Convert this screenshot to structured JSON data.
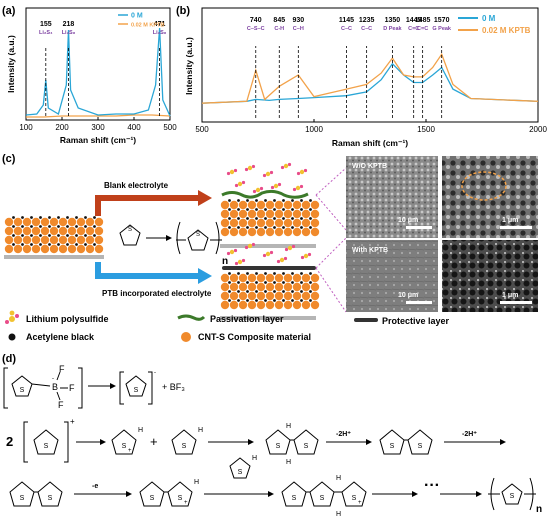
{
  "panels": {
    "a": "(a)",
    "b": "(b)",
    "c": "(c)",
    "d": "(d)"
  },
  "chart_data": [
    {
      "type": "line",
      "panel": "a",
      "xlabel": "Raman shift (cm⁻¹)",
      "ylabel": "Intensity (a.u.)",
      "xlim": [
        100,
        500
      ],
      "xticks": [
        100,
        200,
        300,
        400,
        500
      ],
      "legend_position": "top-right",
      "colors": {
        "0 M": "#2aa6d6",
        "0.02 M KPTB": "#f2a24a"
      },
      "series": [
        {
          "name": "0 M",
          "x": [
            100,
            130,
            148,
            155,
            162,
            190,
            212,
            218,
            224,
            245,
            300,
            350,
            400,
            440,
            460,
            471,
            480,
            500
          ],
          "y": [
            0.05,
            0.06,
            0.15,
            0.4,
            0.12,
            0.06,
            0.35,
            0.9,
            0.3,
            0.12,
            0.05,
            0.06,
            0.06,
            0.1,
            0.35,
            0.92,
            0.2,
            0.04
          ]
        },
        {
          "name": "0.02 M KPTB",
          "x": [
            100,
            150,
            200,
            250,
            300,
            350,
            400,
            450,
            500
          ],
          "y": [
            0.03,
            0.03,
            0.04,
            0.04,
            0.04,
            0.04,
            0.05,
            0.05,
            0.04
          ]
        }
      ],
      "annotations": [
        {
          "x": 155,
          "label": "155",
          "species": "Li₂S₄"
        },
        {
          "x": 218,
          "label": "218",
          "species": "Li₂S₈"
        },
        {
          "x": 471,
          "label": "471",
          "species": "Li₂S₈"
        }
      ]
    },
    {
      "type": "line",
      "panel": "b",
      "xlabel": "Raman shift (cm⁻¹)",
      "ylabel": "Intensity (a.u.)",
      "xlim": [
        500,
        2000
      ],
      "xticks": [
        500,
        1000,
        1500,
        2000
      ],
      "legend_position": "top-right",
      "colors": {
        "0 M": "#2aa6d6",
        "0.02 M KPTB": "#f2a24a"
      },
      "series": [
        {
          "name": "0 M",
          "x": [
            500,
            700,
            740,
            800,
            845,
            930,
            1000,
            1145,
            1235,
            1300,
            1350,
            1400,
            1445,
            1485,
            1530,
            1570,
            1620,
            1700,
            2000
          ],
          "y": [
            0.2,
            0.22,
            0.24,
            0.23,
            0.24,
            0.25,
            0.26,
            0.28,
            0.32,
            0.45,
            0.62,
            0.5,
            0.42,
            0.42,
            0.5,
            0.58,
            0.35,
            0.25,
            0.22
          ]
        },
        {
          "name": "0.02 M KPTB",
          "x": [
            500,
            700,
            740,
            780,
            845,
            930,
            1000,
            1145,
            1235,
            1300,
            1350,
            1400,
            1445,
            1485,
            1530,
            1570,
            1620,
            1700,
            2000
          ],
          "y": [
            0.2,
            0.22,
            0.55,
            0.24,
            0.38,
            0.5,
            0.27,
            0.35,
            0.4,
            0.52,
            0.68,
            0.5,
            0.48,
            0.48,
            0.58,
            0.72,
            0.4,
            0.25,
            0.22
          ]
        }
      ],
      "annotations": [
        {
          "x": 740,
          "label": "740",
          "assign": "C–S–C"
        },
        {
          "x": 845,
          "label": "845",
          "assign": "C-H"
        },
        {
          "x": 930,
          "label": "930",
          "assign": "C–H"
        },
        {
          "x": 1145,
          "label": "1145",
          "assign": "C–C"
        },
        {
          "x": 1235,
          "label": "1235",
          "assign": "C–C"
        },
        {
          "x": 1350,
          "label": "1350",
          "assign": "D Peak"
        },
        {
          "x": 1445,
          "label": "1445",
          "assign": "C=C"
        },
        {
          "x": 1485,
          "label": "1485",
          "assign": "C=C"
        },
        {
          "x": 1570,
          "label": "1570",
          "assign": "G Peak"
        }
      ]
    }
  ],
  "schematic": {
    "blank_label": "Blank  electrolyte",
    "ptb_label": "PTB incorporated electrolyte",
    "n_sub": "n",
    "sem": {
      "top_left": "W/O KPTB",
      "bottom_left": "With KPTB",
      "scale_10": "10 μm",
      "scale_1": "1 μm"
    },
    "legend": {
      "polysulfide": "Lithium polysulfide",
      "acetylene": "Acetylene black",
      "passivation": "Passivation layer",
      "cnt": "CNT-S Composite material",
      "protective": "Protective layer"
    },
    "colors": {
      "cnt": "#f08a2c",
      "passivation": "#3c7a2a",
      "blank_arrow": "#c0401a",
      "ptb_arrow": "#2b9de0"
    }
  },
  "mechanism": {
    "bf_f": "F",
    "bf_b": "B",
    "plus_bf3": "+ BF₃",
    "minus": "-",
    "plus": "+",
    "coef": "2",
    "h": "H",
    "s": "S",
    "minus2h": "-2H⁺",
    "minus_e": "-e",
    "dots": "···",
    "n": "n"
  }
}
